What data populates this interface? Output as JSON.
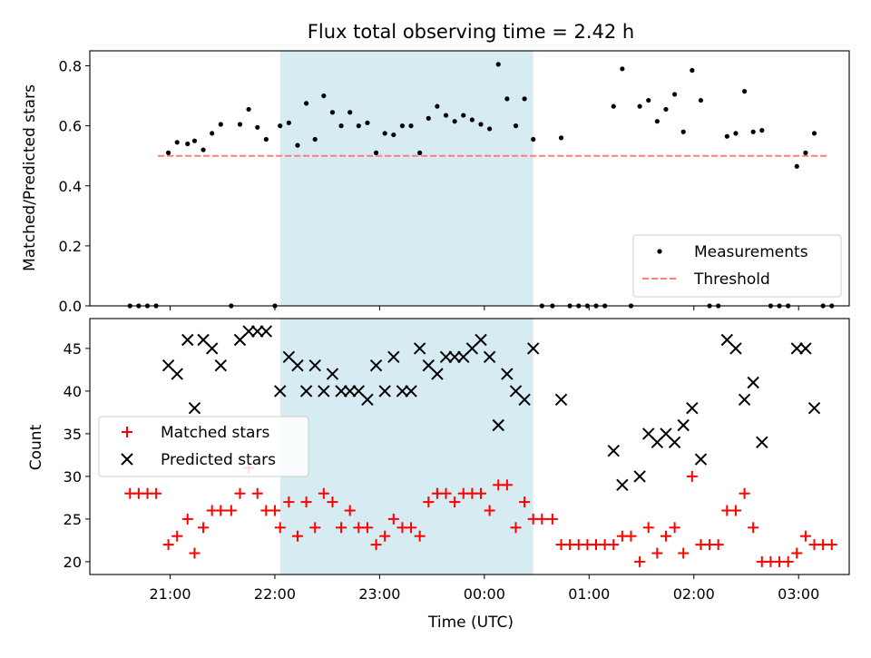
{
  "chart_data": [
    {
      "type": "scatter",
      "title": "Flux total observing time = 2.42 h",
      "xlabel": "",
      "ylabel": "Matched/Predicted stars",
      "ylim": [
        0,
        0.85
      ],
      "yticks": [
        "0.0",
        "0.2",
        "0.4",
        "0.6",
        "0.8"
      ],
      "shaded_region": {
        "x_start": "22:03",
        "x_end": "00:28",
        "color": "#add8e6"
      },
      "legend": {
        "placement": "lower right"
      },
      "series": [
        {
          "name": "Measurements",
          "style": "point",
          "color": "#000000",
          "points": [
            [
              "20:37",
              0.0
            ],
            [
              "20:42",
              0.0
            ],
            [
              "20:47",
              0.0
            ],
            [
              "20:52",
              0.0
            ],
            [
              "20:59",
              0.51
            ],
            [
              "21:04",
              0.545
            ],
            [
              "21:10",
              0.54
            ],
            [
              "21:14",
              0.55
            ],
            [
              "21:19",
              0.52
            ],
            [
              "21:24",
              0.575
            ],
            [
              "21:29",
              0.605
            ],
            [
              "21:35",
              0.0
            ],
            [
              "21:40",
              0.605
            ],
            [
              "21:45",
              0.655
            ],
            [
              "21:50",
              0.595
            ],
            [
              "21:55",
              0.555
            ],
            [
              "22:00",
              0.0
            ],
            [
              "22:03",
              0.6
            ],
            [
              "22:08",
              0.61
            ],
            [
              "22:13",
              0.535
            ],
            [
              "22:18",
              0.675
            ],
            [
              "22:23",
              0.555
            ],
            [
              "22:28",
              0.7
            ],
            [
              "22:33",
              0.645
            ],
            [
              "22:38",
              0.6
            ],
            [
              "22:43",
              0.645
            ],
            [
              "22:48",
              0.6
            ],
            [
              "22:53",
              0.61
            ],
            [
              "22:58",
              0.51
            ],
            [
              "23:03",
              0.575
            ],
            [
              "23:08",
              0.57
            ],
            [
              "23:13",
              0.6
            ],
            [
              "23:18",
              0.6
            ],
            [
              "23:23",
              0.51
            ],
            [
              "23:28",
              0.625
            ],
            [
              "23:33",
              0.665
            ],
            [
              "23:38",
              0.635
            ],
            [
              "23:43",
              0.615
            ],
            [
              "23:48",
              0.635
            ],
            [
              "23:53",
              0.62
            ],
            [
              "23:58",
              0.605
            ],
            [
              "00:03",
              0.59
            ],
            [
              "00:08",
              0.805
            ],
            [
              "00:13",
              0.69
            ],
            [
              "00:18",
              0.6
            ],
            [
              "00:23",
              0.69
            ],
            [
              "00:28",
              0.555
            ],
            [
              "00:33",
              0.0
            ],
            [
              "00:39",
              0.0
            ],
            [
              "00:44",
              0.56
            ],
            [
              "00:49",
              0.0
            ],
            [
              "00:54",
              0.0
            ],
            [
              "00:59",
              0.0
            ],
            [
              "01:04",
              0.0
            ],
            [
              "01:09",
              0.0
            ],
            [
              "01:14",
              0.665
            ],
            [
              "01:19",
              0.79
            ],
            [
              "01:24",
              0.0
            ],
            [
              "01:29",
              0.665
            ],
            [
              "01:34",
              0.685
            ],
            [
              "01:39",
              0.615
            ],
            [
              "01:44",
              0.655
            ],
            [
              "01:49",
              0.705
            ],
            [
              "01:54",
              0.58
            ],
            [
              "01:59",
              0.785
            ],
            [
              "02:04",
              0.685
            ],
            [
              "02:09",
              0.0
            ],
            [
              "02:14",
              0.0
            ],
            [
              "02:19",
              0.565
            ],
            [
              "02:24",
              0.575
            ],
            [
              "02:29",
              0.715
            ],
            [
              "02:34",
              0.58
            ],
            [
              "02:39",
              0.585
            ],
            [
              "02:44",
              0.0
            ],
            [
              "02:49",
              0.0
            ],
            [
              "02:54",
              0.0
            ],
            [
              "02:59",
              0.465
            ],
            [
              "03:04",
              0.51
            ],
            [
              "03:09",
              0.575
            ],
            [
              "03:14",
              0.0
            ],
            [
              "03:19",
              0.0
            ]
          ]
        },
        {
          "name": "Threshold",
          "style": "dashed-line",
          "color": "#ff7f7f",
          "points": [
            [
              "20:53",
              0.5
            ],
            [
              "03:16",
              0.5
            ]
          ]
        }
      ]
    },
    {
      "type": "scatter",
      "title": "",
      "xlabel": "Time (UTC)",
      "ylabel": "Count",
      "ylim": [
        18.5,
        48.5
      ],
      "yticks": [
        "20",
        "25",
        "30",
        "35",
        "40",
        "45"
      ],
      "xticks": [
        "21:00",
        "22:00",
        "23:00",
        "00:00",
        "01:00",
        "02:00",
        "03:00"
      ],
      "shaded_region": {
        "x_start": "22:03",
        "x_end": "00:28",
        "color": "#add8e6"
      },
      "legend": {
        "placement": "center left"
      },
      "series": [
        {
          "name": "Matched stars",
          "style": "plus",
          "color": "#ff0000",
          "points": [
            [
              "20:37",
              28
            ],
            [
              "20:42",
              28
            ],
            [
              "20:47",
              28
            ],
            [
              "20:52",
              28
            ],
            [
              "20:59",
              22
            ],
            [
              "21:04",
              23
            ],
            [
              "21:10",
              25
            ],
            [
              "21:14",
              21
            ],
            [
              "21:19",
              24
            ],
            [
              "21:24",
              26
            ],
            [
              "21:29",
              26
            ],
            [
              "21:35",
              26
            ],
            [
              "21:40",
              28
            ],
            [
              "21:45",
              31
            ],
            [
              "21:50",
              28
            ],
            [
              "21:55",
              26
            ],
            [
              "22:00",
              26
            ],
            [
              "22:03",
              24
            ],
            [
              "22:08",
              27
            ],
            [
              "22:13",
              23
            ],
            [
              "22:18",
              27
            ],
            [
              "22:23",
              24
            ],
            [
              "22:28",
              28
            ],
            [
              "22:33",
              27
            ],
            [
              "22:38",
              24
            ],
            [
              "22:43",
              26
            ],
            [
              "22:48",
              24
            ],
            [
              "22:53",
              24
            ],
            [
              "22:58",
              22
            ],
            [
              "23:03",
              23
            ],
            [
              "23:08",
              25
            ],
            [
              "23:13",
              24
            ],
            [
              "23:18",
              24
            ],
            [
              "23:23",
              23
            ],
            [
              "23:28",
              27
            ],
            [
              "23:33",
              28
            ],
            [
              "23:38",
              28
            ],
            [
              "23:43",
              27
            ],
            [
              "23:48",
              28
            ],
            [
              "23:53",
              28
            ],
            [
              "23:58",
              28
            ],
            [
              "00:03",
              26
            ],
            [
              "00:08",
              29
            ],
            [
              "00:13",
              29
            ],
            [
              "00:18",
              24
            ],
            [
              "00:23",
              27
            ],
            [
              "00:28",
              25
            ],
            [
              "00:33",
              25
            ],
            [
              "00:39",
              25
            ],
            [
              "00:44",
              22
            ],
            [
              "00:49",
              22
            ],
            [
              "00:54",
              22
            ],
            [
              "00:59",
              22
            ],
            [
              "01:04",
              22
            ],
            [
              "01:09",
              22
            ],
            [
              "01:14",
              22
            ],
            [
              "01:19",
              23
            ],
            [
              "01:24",
              23
            ],
            [
              "01:29",
              20
            ],
            [
              "01:34",
              24
            ],
            [
              "01:39",
              21
            ],
            [
              "01:44",
              23
            ],
            [
              "01:49",
              24
            ],
            [
              "01:54",
              21
            ],
            [
              "01:59",
              30
            ],
            [
              "02:04",
              22
            ],
            [
              "02:09",
              22
            ],
            [
              "02:14",
              22
            ],
            [
              "02:19",
              26
            ],
            [
              "02:24",
              26
            ],
            [
              "02:29",
              28
            ],
            [
              "02:34",
              24
            ],
            [
              "02:39",
              20
            ],
            [
              "02:44",
              20
            ],
            [
              "02:49",
              20
            ],
            [
              "02:54",
              20
            ],
            [
              "02:59",
              21
            ],
            [
              "03:04",
              23
            ],
            [
              "03:09",
              22
            ],
            [
              "03:14",
              22
            ],
            [
              "03:19",
              22
            ]
          ]
        },
        {
          "name": "Predicted stars",
          "style": "x",
          "color": "#000000",
          "points": [
            [
              "20:59",
              43
            ],
            [
              "21:04",
              42
            ],
            [
              "21:10",
              46
            ],
            [
              "21:14",
              38
            ],
            [
              "21:19",
              46
            ],
            [
              "21:24",
              45
            ],
            [
              "21:29",
              43
            ],
            [
              "21:40",
              46
            ],
            [
              "21:45",
              47
            ],
            [
              "21:50",
              47
            ],
            [
              "21:55",
              47
            ],
            [
              "22:03",
              40
            ],
            [
              "22:08",
              44
            ],
            [
              "22:13",
              43
            ],
            [
              "22:18",
              40
            ],
            [
              "22:23",
              43
            ],
            [
              "22:28",
              40
            ],
            [
              "22:33",
              42
            ],
            [
              "22:38",
              40
            ],
            [
              "22:43",
              40
            ],
            [
              "22:48",
              40
            ],
            [
              "22:53",
              39
            ],
            [
              "22:58",
              43
            ],
            [
              "23:03",
              40
            ],
            [
              "23:08",
              44
            ],
            [
              "23:13",
              40
            ],
            [
              "23:18",
              40
            ],
            [
              "23:23",
              45
            ],
            [
              "23:28",
              43
            ],
            [
              "23:33",
              42
            ],
            [
              "23:38",
              44
            ],
            [
              "23:43",
              44
            ],
            [
              "23:48",
              44
            ],
            [
              "23:53",
              45
            ],
            [
              "23:58",
              46
            ],
            [
              "00:03",
              44
            ],
            [
              "00:08",
              36
            ],
            [
              "00:13",
              42
            ],
            [
              "00:18",
              40
            ],
            [
              "00:23",
              39
            ],
            [
              "00:28",
              45
            ],
            [
              "00:44",
              39
            ],
            [
              "01:14",
              33
            ],
            [
              "01:19",
              29
            ],
            [
              "01:29",
              30
            ],
            [
              "01:34",
              35
            ],
            [
              "01:39",
              34
            ],
            [
              "01:44",
              35
            ],
            [
              "01:49",
              34
            ],
            [
              "01:54",
              36
            ],
            [
              "01:59",
              38
            ],
            [
              "02:04",
              32
            ],
            [
              "02:19",
              46
            ],
            [
              "02:24",
              45
            ],
            [
              "02:29",
              39
            ],
            [
              "02:34",
              41
            ],
            [
              "02:39",
              34
            ],
            [
              "02:59",
              45
            ],
            [
              "03:04",
              45
            ],
            [
              "03:09",
              38
            ]
          ]
        }
      ]
    }
  ]
}
